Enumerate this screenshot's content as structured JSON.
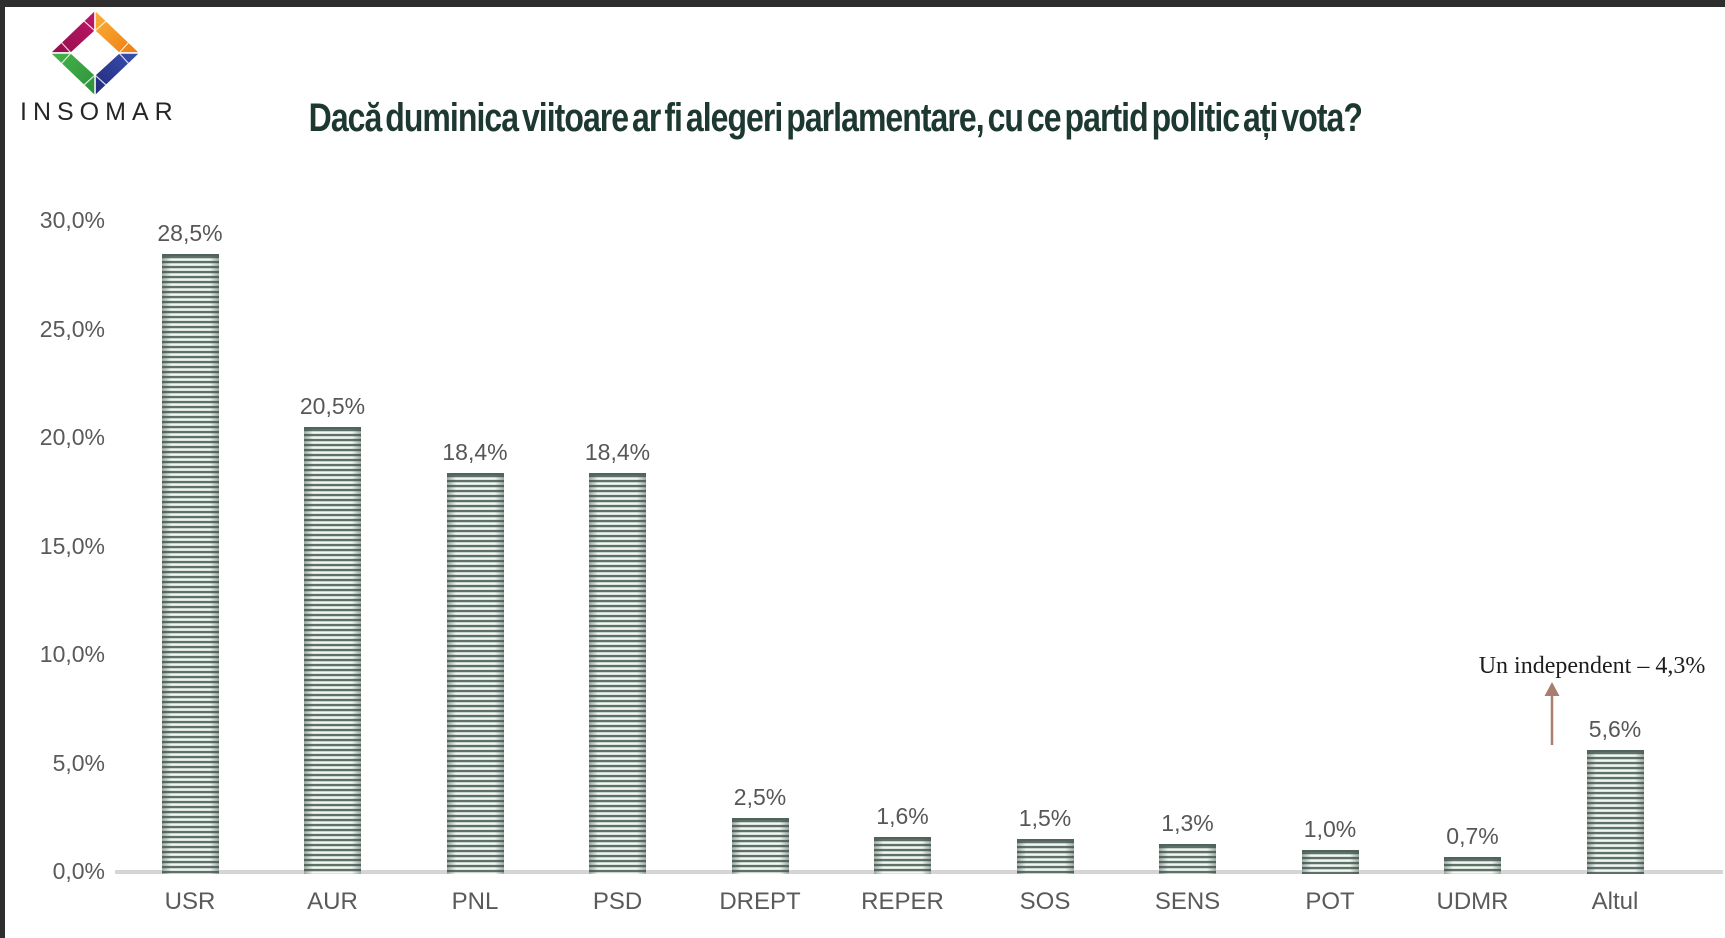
{
  "brand": {
    "name": "INSOMAR",
    "logo_colors": {
      "magenta": "#c4156b",
      "magenta_dark": "#8f0f49",
      "orange": "#f89c1c",
      "orange_dark": "#ee7c0f",
      "blue": "#3a50b5",
      "blue_dark": "#232a77",
      "green": "#45b649",
      "green_dark": "#2e8f3c"
    }
  },
  "title": "Dacă duminica viitoare ar fi alegeri parlamentare, cu ce partid politic ați vota?",
  "chart_data": {
    "type": "bar",
    "categories": [
      "USR",
      "AUR",
      "PNL",
      "PSD",
      "DREPT",
      "REPER",
      "SOS",
      "SENS",
      "POT",
      "UDMR",
      "Altul"
    ],
    "values": [
      28.5,
      20.5,
      18.4,
      18.4,
      2.5,
      1.6,
      1.5,
      1.3,
      1.0,
      0.7,
      5.6
    ],
    "value_labels": [
      "28,5%",
      "20,5%",
      "18,4%",
      "18,4%",
      "2,5%",
      "1,6%",
      "1,5%",
      "1,3%",
      "1,0%",
      "0,7%",
      "5,6%"
    ],
    "y_ticks": [
      "30,0%",
      "25,0%",
      "20,0%",
      "15,0%",
      "10,0%",
      "5,0%",
      "0,0%"
    ],
    "ylim": [
      0,
      30
    ],
    "xlabel": "",
    "ylabel": "",
    "grid": false,
    "legend": false,
    "annotation": {
      "text": "Un independent – 4,3%",
      "target": "Altul",
      "arrow_color": "#a97e6f"
    },
    "bar_stripe_dark": "#5d7168",
    "bar_stripe_light": "#eff3f1",
    "axis_text_color": "#5a5a5a",
    "title_color": "#1d3831"
  }
}
